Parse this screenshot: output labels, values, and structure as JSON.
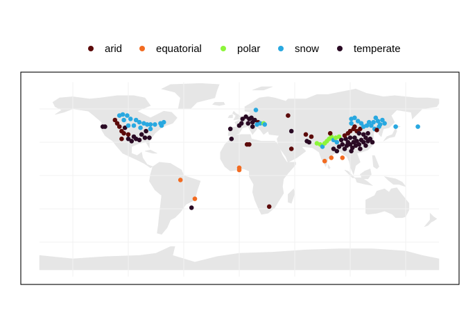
{
  "legend": {
    "items": [
      {
        "key": "arid",
        "label": "arid",
        "color": "#5c0a0a"
      },
      {
        "key": "equatorial",
        "label": "equatorial",
        "color": "#f26b21"
      },
      {
        "key": "polar",
        "label": "polar",
        "color": "#8cf53a"
      },
      {
        "key": "snow",
        "label": "snow",
        "color": "#29a8e0"
      },
      {
        "key": "temperate",
        "label": "temperate",
        "color": "#2a0a24"
      }
    ]
  },
  "map": {
    "projection": "equirectangular",
    "land_color": "#e6e6e6",
    "grid_color": "#f2f2f2",
    "panel_border": "#000000",
    "grid_longitudes": [
      -150,
      -100,
      -50,
      0,
      50,
      100,
      150
    ],
    "grid_latitudes": [
      -60,
      -30,
      0,
      30,
      60
    ]
  },
  "points": [
    {
      "lon": -123,
      "lat": 44,
      "class": "temperate"
    },
    {
      "lon": -121,
      "lat": 44,
      "class": "temperate"
    },
    {
      "lon": -112,
      "lat": 50,
      "class": "arid"
    },
    {
      "lon": -110,
      "lat": 47,
      "class": "arid"
    },
    {
      "lon": -108,
      "lat": 44,
      "class": "arid"
    },
    {
      "lon": -106,
      "lat": 40,
      "class": "arid"
    },
    {
      "lon": -104,
      "lat": 38,
      "class": "arid"
    },
    {
      "lon": -100,
      "lat": 37,
      "class": "arid"
    },
    {
      "lon": -106,
      "lat": 33,
      "class": "arid"
    },
    {
      "lon": -100,
      "lat": 33,
      "class": "temperate"
    },
    {
      "lon": -95,
      "lat": 35,
      "class": "temperate"
    },
    {
      "lon": -93,
      "lat": 33,
      "class": "temperate"
    },
    {
      "lon": -97,
      "lat": 31,
      "class": "temperate"
    },
    {
      "lon": -90,
      "lat": 32,
      "class": "temperate"
    },
    {
      "lon": -85,
      "lat": 34,
      "class": "temperate"
    },
    {
      "lon": -81,
      "lat": 34,
      "class": "temperate"
    },
    {
      "lon": -84,
      "lat": 40,
      "class": "temperate"
    },
    {
      "lon": -88,
      "lat": 37,
      "class": "temperate"
    },
    {
      "lon": -103,
      "lat": 43,
      "class": "temperate"
    },
    {
      "lon": -108,
      "lat": 54,
      "class": "snow"
    },
    {
      "lon": -105,
      "lat": 55,
      "class": "snow"
    },
    {
      "lon": -101,
      "lat": 54,
      "class": "snow"
    },
    {
      "lon": -104,
      "lat": 50,
      "class": "snow"
    },
    {
      "lon": -98,
      "lat": 51,
      "class": "snow"
    },
    {
      "lon": -93,
      "lat": 50,
      "class": "snow"
    },
    {
      "lon": -90,
      "lat": 48,
      "class": "snow"
    },
    {
      "lon": -86,
      "lat": 47,
      "class": "snow"
    },
    {
      "lon": -83,
      "lat": 46,
      "class": "snow"
    },
    {
      "lon": -80,
      "lat": 46,
      "class": "snow"
    },
    {
      "lon": -76,
      "lat": 46,
      "class": "snow"
    },
    {
      "lon": -71,
      "lat": 47,
      "class": "snow"
    },
    {
      "lon": -68,
      "lat": 48,
      "class": "snow"
    },
    {
      "lon": -70,
      "lat": 45,
      "class": "snow"
    },
    {
      "lon": -95,
      "lat": 45,
      "class": "snow"
    },
    {
      "lon": -89,
      "lat": 43,
      "class": "snow"
    },
    {
      "lon": -100,
      "lat": 45,
      "class": "snow"
    },
    {
      "lon": -80,
      "lat": 42,
      "class": "snow"
    },
    {
      "lon": -53,
      "lat": -4,
      "class": "equatorial"
    },
    {
      "lon": -40,
      "lat": -21,
      "class": "equatorial"
    },
    {
      "lon": -43,
      "lat": -29,
      "class": "temperate"
    },
    {
      "lon": 0,
      "lat": 7,
      "class": "equatorial"
    },
    {
      "lon": 0,
      "lat": 5,
      "class": "equatorial"
    },
    {
      "lon": 7,
      "lat": 28,
      "class": "arid"
    },
    {
      "lon": 9,
      "lat": 28,
      "class": "arid"
    },
    {
      "lon": -7,
      "lat": 33,
      "class": "temperate"
    },
    {
      "lon": -8,
      "lat": 42,
      "class": "temperate"
    },
    {
      "lon": 0,
      "lat": 45,
      "class": "temperate"
    },
    {
      "lon": 2,
      "lat": 47,
      "class": "temperate"
    },
    {
      "lon": 3,
      "lat": 51,
      "class": "temperate"
    },
    {
      "lon": 6,
      "lat": 53,
      "class": "temperate"
    },
    {
      "lon": 9,
      "lat": 51,
      "class": "temperate"
    },
    {
      "lon": 11,
      "lat": 52,
      "class": "temperate"
    },
    {
      "lon": 12,
      "lat": 48,
      "class": "temperate"
    },
    {
      "lon": 8,
      "lat": 47,
      "class": "temperate"
    },
    {
      "lon": 14,
      "lat": 50,
      "class": "temperate"
    },
    {
      "lon": 12,
      "lat": 44,
      "class": "temperate"
    },
    {
      "lon": 17,
      "lat": 48,
      "class": "arid"
    },
    {
      "lon": 16,
      "lat": 46,
      "class": "snow"
    },
    {
      "lon": 19,
      "lat": 47,
      "class": "snow"
    },
    {
      "lon": 15,
      "lat": 59,
      "class": "snow"
    },
    {
      "lon": 22,
      "lat": 47,
      "class": "polar"
    },
    {
      "lon": 23,
      "lat": 46,
      "class": "snow"
    },
    {
      "lon": 44,
      "lat": 54,
      "class": "arid"
    },
    {
      "lon": 47,
      "lat": 40,
      "class": "temperate"
    },
    {
      "lon": 60,
      "lat": 37,
      "class": "arid"
    },
    {
      "lon": 61,
      "lat": 31,
      "class": "temperate"
    },
    {
      "lon": 63,
      "lat": 30,
      "class": "temperate"
    },
    {
      "lon": 47,
      "lat": 24,
      "class": "arid"
    },
    {
      "lon": 65,
      "lat": 35,
      "class": "arid"
    },
    {
      "lon": 77,
      "lat": 13,
      "class": "equatorial"
    },
    {
      "lon": 70,
      "lat": 29,
      "class": "polar"
    },
    {
      "lon": 73,
      "lat": 28,
      "class": "polar"
    },
    {
      "lon": 75,
      "lat": 26,
      "class": "snow"
    },
    {
      "lon": 77,
      "lat": 29,
      "class": "polar"
    },
    {
      "lon": 79,
      "lat": 31,
      "class": "polar"
    },
    {
      "lon": 81,
      "lat": 33,
      "class": "polar"
    },
    {
      "lon": 83,
      "lat": 35,
      "class": "polar"
    },
    {
      "lon": 85,
      "lat": 32,
      "class": "snow"
    },
    {
      "lon": 87,
      "lat": 34,
      "class": "polar"
    },
    {
      "lon": 88,
      "lat": 30,
      "class": "snow"
    },
    {
      "lon": 90,
      "lat": 35,
      "class": "polar"
    },
    {
      "lon": 92,
      "lat": 32,
      "class": "temperate"
    },
    {
      "lon": 82,
      "lat": 38,
      "class": "arid"
    },
    {
      "lon": 85,
      "lat": 24,
      "class": "temperate"
    },
    {
      "lon": 88,
      "lat": 22,
      "class": "temperate"
    },
    {
      "lon": 83,
      "lat": 16,
      "class": "equatorial"
    },
    {
      "lon": 93,
      "lat": 16,
      "class": "equatorial"
    },
    {
      "lon": 90,
      "lat": 26,
      "class": "temperate"
    },
    {
      "lon": 93,
      "lat": 28,
      "class": "temperate"
    },
    {
      "lon": 95,
      "lat": 24,
      "class": "temperate"
    },
    {
      "lon": 97,
      "lat": 27,
      "class": "temperate"
    },
    {
      "lon": 98,
      "lat": 30,
      "class": "temperate"
    },
    {
      "lon": 100,
      "lat": 28,
      "class": "temperate"
    },
    {
      "lon": 102,
      "lat": 25,
      "class": "temperate"
    },
    {
      "lon": 103,
      "lat": 30,
      "class": "temperate"
    },
    {
      "lon": 105,
      "lat": 27,
      "class": "temperate"
    },
    {
      "lon": 106,
      "lat": 31,
      "class": "temperate"
    },
    {
      "lon": 108,
      "lat": 28,
      "class": "temperate"
    },
    {
      "lon": 110,
      "lat": 32,
      "class": "temperate"
    },
    {
      "lon": 104,
      "lat": 34,
      "class": "temperate"
    },
    {
      "lon": 100,
      "lat": 34,
      "class": "temperate"
    },
    {
      "lon": 96,
      "lat": 33,
      "class": "temperate"
    },
    {
      "lon": 101,
      "lat": 22,
      "class": "temperate"
    },
    {
      "lon": 95,
      "lat": 36,
      "class": "arid"
    },
    {
      "lon": 98,
      "lat": 38,
      "class": "arid"
    },
    {
      "lon": 100,
      "lat": 40,
      "class": "arid"
    },
    {
      "lon": 103,
      "lat": 42,
      "class": "arid"
    },
    {
      "lon": 106,
      "lat": 40,
      "class": "arid"
    },
    {
      "lon": 109,
      "lat": 42,
      "class": "arid"
    },
    {
      "lon": 104,
      "lat": 44,
      "class": "arid"
    },
    {
      "lon": 108,
      "lat": 38,
      "class": "temperate"
    },
    {
      "lon": 112,
      "lat": 37,
      "class": "temperate"
    },
    {
      "lon": 114,
      "lat": 34,
      "class": "temperate"
    },
    {
      "lon": 116,
      "lat": 38,
      "class": "temperate"
    },
    {
      "lon": 112,
      "lat": 30,
      "class": "temperate"
    },
    {
      "lon": 116,
      "lat": 31,
      "class": "temperate"
    },
    {
      "lon": 118,
      "lat": 33,
      "class": "temperate"
    },
    {
      "lon": 114,
      "lat": 27,
      "class": "temperate"
    },
    {
      "lon": 120,
      "lat": 30,
      "class": "temperate"
    },
    {
      "lon": 109,
      "lat": 24,
      "class": "temperate"
    },
    {
      "lon": 101,
      "lat": 47,
      "class": "snow"
    },
    {
      "lon": 101,
      "lat": 51,
      "class": "snow"
    },
    {
      "lon": 104,
      "lat": 52,
      "class": "snow"
    },
    {
      "lon": 107,
      "lat": 49,
      "class": "snow"
    },
    {
      "lon": 110,
      "lat": 47,
      "class": "snow"
    },
    {
      "lon": 112,
      "lat": 44,
      "class": "snow"
    },
    {
      "lon": 115,
      "lat": 45,
      "class": "snow"
    },
    {
      "lon": 117,
      "lat": 48,
      "class": "snow"
    },
    {
      "lon": 119,
      "lat": 45,
      "class": "snow"
    },
    {
      "lon": 121,
      "lat": 48,
      "class": "snow"
    },
    {
      "lon": 123,
      "lat": 52,
      "class": "snow"
    },
    {
      "lon": 125,
      "lat": 49,
      "class": "snow"
    },
    {
      "lon": 127,
      "lat": 46,
      "class": "snow"
    },
    {
      "lon": 129,
      "lat": 50,
      "class": "snow"
    },
    {
      "lon": 131,
      "lat": 47,
      "class": "snow"
    },
    {
      "lon": 122,
      "lat": 42,
      "class": "snow"
    },
    {
      "lon": 126,
      "lat": 44,
      "class": "snow"
    },
    {
      "lon": 141,
      "lat": 44,
      "class": "snow"
    },
    {
      "lon": 161,
      "lat": 44,
      "class": "snow"
    },
    {
      "lon": 124,
      "lat": 41,
      "class": "arid"
    },
    {
      "lon": 27,
      "lat": -28,
      "class": "arid"
    }
  ]
}
